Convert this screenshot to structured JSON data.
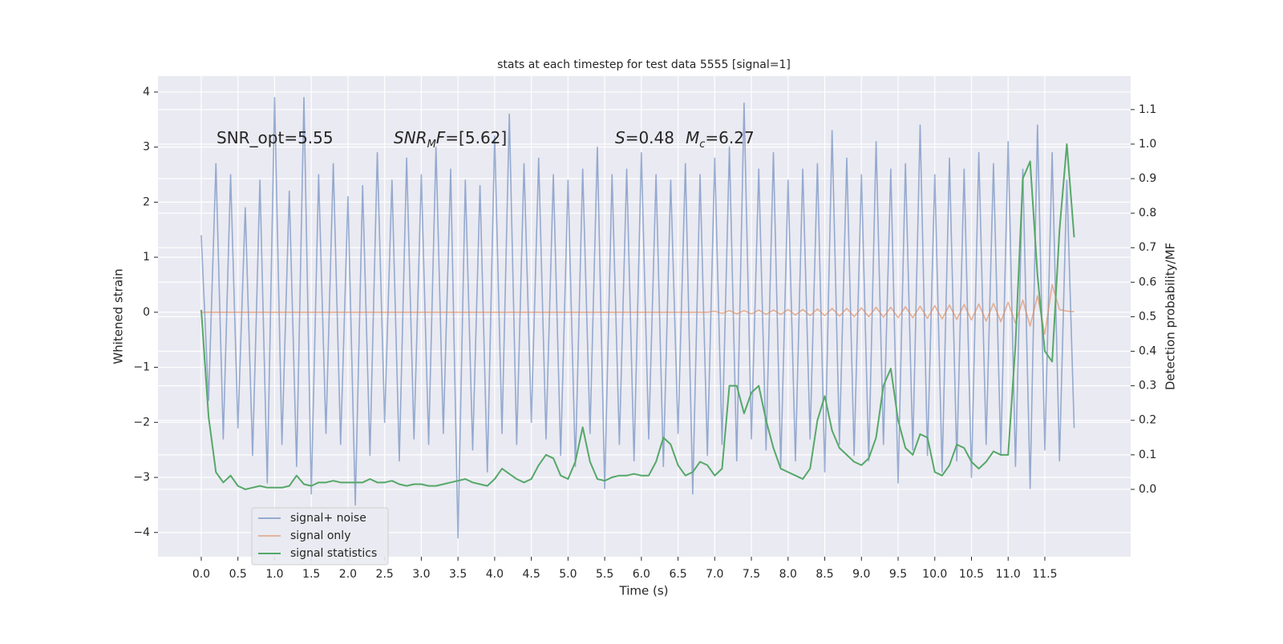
{
  "chart_data": {
    "type": "line",
    "title": "stats at each timestep for test data 5555 [signal=1]",
    "x_label": "Time (s)",
    "y_label": "Whitened strain",
    "y2_label": "Detection probability/MF",
    "annotations": [
      [
        "SNR_opt=5.55"
      ],
      [
        "SNR",
        "M",
        "F",
        "=[5.62]"
      ],
      [
        "S",
        "=0.48",
        "M",
        "c",
        "=6.27"
      ]
    ],
    "legend": "lower left",
    "grid": true,
    "xlim": [
      -0.59,
      12.67
    ],
    "ylim": [
      -4.44,
      4.29
    ],
    "y2lim": [
      -0.195,
      1.197
    ],
    "xticks": [
      {
        "value": 0,
        "label": "0.0"
      },
      0.5,
      {
        "value": 1,
        "label": "1.0"
      },
      1.5,
      {
        "value": 2,
        "label": "2.0"
      },
      2.5,
      {
        "value": 3,
        "label": "3.0"
      },
      3.5,
      {
        "value": 4,
        "label": "4.0"
      },
      4.5,
      {
        "value": 5,
        "label": "5.0"
      },
      5.5,
      {
        "value": 6,
        "label": "6.0"
      },
      6.5,
      {
        "value": 7,
        "label": "7.0"
      },
      7.5,
      {
        "value": 8,
        "label": "8.0"
      },
      8.5,
      {
        "value": 9,
        "label": "9.0"
      },
      9.5,
      {
        "value": 10,
        "label": "10.0"
      },
      10.5,
      {
        "value": 11,
        "label": "11.0"
      },
      11.5
    ],
    "yticks": [
      {
        "value": -4,
        "label": "−4"
      },
      {
        "value": -3,
        "label": "−3"
      },
      {
        "value": -2,
        "label": "−2"
      },
      {
        "value": -1,
        "label": "−1"
      },
      0,
      1,
      2,
      3,
      4
    ],
    "y2ticks": [
      {
        "value": 0,
        "label": "0.0"
      },
      0.1,
      0.2,
      0.3,
      0.4,
      0.5,
      0.6,
      0.7,
      0.8,
      0.9,
      {
        "value": 1,
        "label": "1.0"
      },
      1.1
    ],
    "x": [
      0.0,
      0.1,
      0.2,
      0.3,
      0.4,
      0.5,
      0.6,
      0.7,
      0.8,
      0.9,
      1.0,
      1.1,
      1.2,
      1.3,
      1.4,
      1.5,
      1.6,
      1.7,
      1.8,
      1.9,
      2.0,
      2.1,
      2.2,
      2.3,
      2.4,
      2.5,
      2.6,
      2.7,
      2.8,
      2.9,
      3.0,
      3.1,
      3.2,
      3.3,
      3.4,
      3.5,
      3.6,
      3.7,
      3.8,
      3.9,
      4.0,
      4.1,
      4.2,
      4.3,
      4.4,
      4.5,
      4.6,
      4.7,
      4.8,
      4.9,
      5.0,
      5.1,
      5.2,
      5.3,
      5.4,
      5.5,
      5.6,
      5.7,
      5.8,
      5.9,
      6.0,
      6.1,
      6.2,
      6.3,
      6.4,
      6.5,
      6.6,
      6.7,
      6.8,
      6.9,
      7.0,
      7.1,
      7.2,
      7.3,
      7.4,
      7.5,
      7.6,
      7.7,
      7.8,
      7.9,
      8.0,
      8.1,
      8.2,
      8.3,
      8.4,
      8.5,
      8.6,
      8.7,
      8.8,
      8.9,
      9.0,
      9.1,
      9.2,
      9.3,
      9.4,
      9.5,
      9.6,
      9.7,
      9.8,
      9.9,
      10.0,
      10.1,
      10.2,
      10.3,
      10.4,
      10.5,
      10.6,
      10.7,
      10.8,
      10.9,
      11.0,
      11.1,
      11.2,
      11.3,
      11.4,
      11.5,
      11.6,
      11.7,
      11.8,
      11.9
    ],
    "series": [
      {
        "name": "signal+ noise",
        "color": "#4c72b0",
        "values": [
          1.4,
          -1.6,
          2.7,
          -2.3,
          2.5,
          -2.1,
          1.9,
          -2.6,
          2.4,
          -3.1,
          3.9,
          -2.4,
          2.2,
          -2.8,
          3.9,
          -3.3,
          2.5,
          -2.2,
          2.7,
          -2.4,
          2.1,
          -3.5,
          2.3,
          -2.6,
          2.9,
          -2.0,
          2.4,
          -2.7,
          2.8,
          -2.3,
          2.5,
          -2.4,
          3.0,
          -2.2,
          2.6,
          -4.1,
          2.4,
          -2.5,
          2.3,
          -2.9,
          3.2,
          -2.2,
          3.6,
          -2.4,
          2.7,
          -2.0,
          2.8,
          -2.3,
          2.5,
          -2.6,
          2.4,
          -2.8,
          2.6,
          -2.2,
          3.0,
          -3.2,
          2.5,
          -2.4,
          2.6,
          -2.7,
          2.9,
          -2.3,
          2.5,
          -2.8,
          2.4,
          -2.2,
          2.7,
          -3.3,
          2.5,
          -2.6,
          2.8,
          -2.4,
          3.0,
          -2.7,
          3.8,
          -2.3,
          2.6,
          -2.5,
          2.9,
          -2.8,
          2.4,
          -2.7,
          2.6,
          -2.3,
          2.7,
          -2.9,
          3.3,
          -2.4,
          2.8,
          -2.6,
          2.5,
          -2.7,
          3.1,
          -2.4,
          2.6,
          -3.1,
          2.7,
          -2.5,
          3.4,
          -2.6,
          2.5,
          -2.9,
          2.8,
          -2.7,
          2.6,
          -3.0,
          2.9,
          -2.4,
          2.7,
          -2.6,
          3.1,
          -2.8,
          2.6,
          -3.2,
          3.4,
          -2.5,
          2.9,
          -2.7,
          2.4,
          -2.1
        ]
      },
      {
        "name": "signal only",
        "color": "#dd8452",
        "values": [
          0,
          0,
          0,
          0,
          0,
          0,
          0,
          0,
          0,
          0,
          0,
          0,
          0,
          0,
          0,
          0,
          0,
          0,
          0,
          0,
          0,
          0,
          0,
          0,
          0,
          0,
          0,
          0,
          0,
          0,
          0,
          0,
          0,
          0,
          0,
          0,
          0,
          0,
          0,
          0,
          0,
          0,
          0,
          0,
          0,
          0,
          0,
          0,
          0,
          0,
          0,
          0,
          0,
          0,
          0,
          0,
          0,
          0,
          0,
          0,
          0,
          0,
          0,
          0,
          0,
          0,
          0,
          0,
          0,
          0,
          0.02,
          -0.02,
          0.03,
          -0.03,
          0.03,
          -0.03,
          0.04,
          -0.04,
          0.04,
          -0.04,
          0.05,
          -0.05,
          0.05,
          -0.06,
          0.06,
          -0.06,
          0.07,
          -0.07,
          0.07,
          -0.08,
          0.08,
          -0.08,
          0.09,
          -0.09,
          0.09,
          -0.1,
          0.1,
          -0.1,
          0.11,
          -0.11,
          0.12,
          -0.12,
          0.13,
          -0.13,
          0.14,
          -0.14,
          0.15,
          -0.16,
          0.16,
          -0.17,
          0.18,
          -0.2,
          0.22,
          -0.25,
          0.3,
          -0.4,
          0.5,
          0.05,
          0.02,
          0.01
        ]
      },
      {
        "name": "signal statistics",
        "color": "#55a868",
        "axis": "y2",
        "values": [
          0.52,
          0.21,
          0.05,
          0.02,
          0.04,
          0.01,
          0.0,
          0.005,
          0.01,
          0.005,
          0.005,
          0.005,
          0.01,
          0.04,
          0.015,
          0.01,
          0.02,
          0.02,
          0.025,
          0.02,
          0.02,
          0.02,
          0.02,
          0.03,
          0.02,
          0.02,
          0.025,
          0.015,
          0.01,
          0.015,
          0.015,
          0.01,
          0.01,
          0.015,
          0.02,
          0.025,
          0.03,
          0.02,
          0.015,
          0.01,
          0.03,
          0.06,
          0.045,
          0.03,
          0.02,
          0.03,
          0.07,
          0.1,
          0.09,
          0.04,
          0.03,
          0.08,
          0.18,
          0.08,
          0.03,
          0.025,
          0.035,
          0.04,
          0.04,
          0.045,
          0.04,
          0.04,
          0.08,
          0.15,
          0.13,
          0.07,
          0.04,
          0.05,
          0.08,
          0.07,
          0.04,
          0.06,
          0.3,
          0.3,
          0.22,
          0.28,
          0.3,
          0.2,
          0.12,
          0.06,
          0.05,
          0.04,
          0.03,
          0.06,
          0.2,
          0.27,
          0.17,
          0.12,
          0.1,
          0.08,
          0.07,
          0.09,
          0.15,
          0.3,
          0.35,
          0.2,
          0.12,
          0.1,
          0.16,
          0.15,
          0.05,
          0.04,
          0.07,
          0.13,
          0.12,
          0.08,
          0.06,
          0.08,
          0.11,
          0.1,
          0.1,
          0.42,
          0.9,
          0.95,
          0.62,
          0.4,
          0.37,
          0.75,
          1.0,
          0.73
        ]
      }
    ]
  }
}
